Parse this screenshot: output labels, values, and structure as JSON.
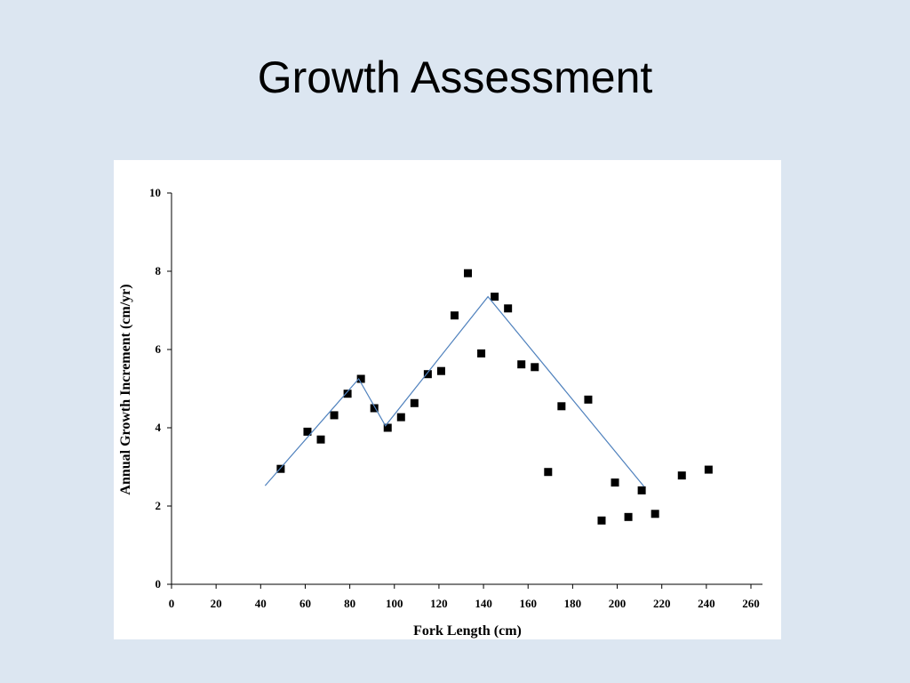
{
  "slide": {
    "title": "Growth Assessment",
    "background_color": "#dce6f1"
  },
  "chart_data": {
    "type": "scatter",
    "xlabel": "Fork Length (cm)",
    "ylabel": "Annual Growth Increment (cm/yr)",
    "xlim": [
      0,
      260
    ],
    "ylim": [
      0,
      10
    ],
    "xticks": [
      0,
      20,
      40,
      60,
      80,
      100,
      120,
      140,
      160,
      180,
      200,
      220,
      240,
      260
    ],
    "yticks": [
      0,
      2,
      4,
      6,
      8,
      10
    ],
    "grid": false,
    "legend": "none",
    "series": [
      {
        "kind": "scatter",
        "marker": "square",
        "color": "#000000",
        "x": [
          49,
          61,
          67,
          73,
          79,
          85,
          91,
          97,
          103,
          109,
          115,
          121,
          127,
          133,
          139,
          145,
          151,
          157,
          163,
          169,
          175,
          187,
          193,
          199,
          205,
          211,
          217,
          229,
          241
        ],
        "y": [
          2.95,
          3.9,
          3.7,
          4.32,
          4.87,
          5.25,
          4.5,
          4.0,
          4.27,
          4.63,
          5.37,
          5.45,
          6.87,
          7.95,
          5.9,
          7.35,
          7.05,
          5.62,
          5.55,
          2.87,
          4.55,
          4.72,
          1.63,
          2.6,
          1.72,
          2.4,
          1.8,
          2.78,
          2.93
        ]
      },
      {
        "kind": "line",
        "color": "#4f81bd",
        "x": [
          42,
          84,
          96,
          142,
          212
        ],
        "y": [
          2.52,
          5.25,
          4.05,
          7.35,
          2.5
        ]
      }
    ]
  }
}
